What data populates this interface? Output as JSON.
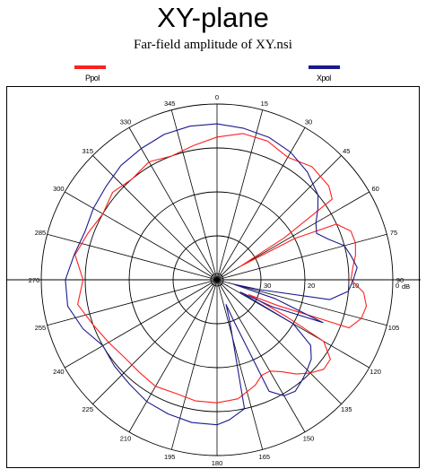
{
  "chart_data": {
    "type": "polar-line",
    "title": "XY-plane",
    "subtitle": "Far-field amplitude of XY.nsi",
    "angle_ticks": [
      "0",
      "15",
      "30",
      "45",
      "60",
      "75",
      "90",
      "105",
      "120",
      "135",
      "150",
      "165",
      "180",
      "195",
      "210",
      "225",
      "240",
      "255",
      "270",
      "285",
      "300",
      "315",
      "330",
      "345"
    ],
    "angle_direction": "clockwise, 0 at top",
    "radial_unit": "dB",
    "radial_ticks": [
      {
        "value": 0,
        "label": "0"
      },
      {
        "value": -10,
        "label": "10"
      },
      {
        "value": -20,
        "label": "20"
      },
      {
        "value": -30,
        "label": "30"
      }
    ],
    "radial_range": [
      -40,
      0
    ],
    "grid": true,
    "series": [
      {
        "name": "Ppol",
        "color": "#ff2020",
        "points": [
          [
            0,
            -7.5
          ],
          [
            10,
            -6.2
          ],
          [
            20,
            -6.4
          ],
          [
            30,
            -7.8
          ],
          [
            40,
            -6.4
          ],
          [
            50,
            -6.8
          ],
          [
            55,
            -8
          ],
          [
            58,
            -22
          ],
          [
            60,
            -34
          ],
          [
            62,
            -20
          ],
          [
            65,
            -10
          ],
          [
            70,
            -7.6
          ],
          [
            75,
            -7.4
          ],
          [
            80,
            -8
          ],
          [
            85,
            -9
          ],
          [
            90,
            -9.5
          ],
          [
            95,
            -6.5
          ],
          [
            100,
            -5.5
          ],
          [
            105,
            -6
          ],
          [
            110,
            -8
          ],
          [
            113,
            -25
          ],
          [
            115,
            -32
          ],
          [
            118,
            -22
          ],
          [
            120,
            -12
          ],
          [
            125,
            -8.5
          ],
          [
            130,
            -8.3
          ],
          [
            135,
            -10
          ],
          [
            140,
            -12
          ],
          [
            145,
            -14.5
          ],
          [
            150,
            -16
          ],
          [
            155,
            -16
          ],
          [
            160,
            -14.5
          ],
          [
            170,
            -12.5
          ],
          [
            180,
            -12
          ],
          [
            190,
            -12
          ],
          [
            200,
            -12.5
          ],
          [
            210,
            -12
          ],
          [
            220,
            -12.5
          ],
          [
            230,
            -12.5
          ],
          [
            240,
            -11.5
          ],
          [
            250,
            -10
          ],
          [
            260,
            -7.8
          ],
          [
            270,
            -9.5
          ],
          [
            280,
            -7.2
          ],
          [
            290,
            -8.8
          ],
          [
            300,
            -10
          ],
          [
            310,
            -9
          ],
          [
            320,
            -10
          ],
          [
            330,
            -9
          ],
          [
            340,
            -10
          ],
          [
            350,
            -9
          ]
        ]
      },
      {
        "name": "Xpol",
        "color": "#1a1a8c",
        "points": [
          [
            0,
            -4.5
          ],
          [
            10,
            -5
          ],
          [
            20,
            -5.5
          ],
          [
            30,
            -6.5
          ],
          [
            40,
            -8
          ],
          [
            50,
            -10
          ],
          [
            55,
            -12
          ],
          [
            60,
            -14
          ],
          [
            65,
            -15
          ],
          [
            70,
            -13
          ],
          [
            75,
            -10
          ],
          [
            80,
            -9
          ],
          [
            85,
            -8
          ],
          [
            90,
            -9
          ],
          [
            95,
            -10
          ],
          [
            100,
            -14
          ],
          [
            103,
            -30
          ],
          [
            105,
            -36
          ],
          [
            108,
            -26
          ],
          [
            112,
            -14
          ],
          [
            116,
            -26
          ],
          [
            118,
            -34
          ],
          [
            120,
            -20
          ],
          [
            125,
            -14
          ],
          [
            130,
            -12
          ],
          [
            135,
            -11
          ],
          [
            140,
            -10
          ],
          [
            145,
            -9
          ],
          [
            150,
            -9.5
          ],
          [
            155,
            -12
          ],
          [
            158,
            -30
          ],
          [
            160,
            -34
          ],
          [
            163,
            -30
          ],
          [
            168,
            -10
          ],
          [
            175,
            -8
          ],
          [
            180,
            -7
          ],
          [
            190,
            -7
          ],
          [
            200,
            -7.5
          ],
          [
            210,
            -8
          ],
          [
            220,
            -9
          ],
          [
            230,
            -9.5
          ],
          [
            240,
            -10
          ],
          [
            250,
            -7.5
          ],
          [
            260,
            -5.5
          ],
          [
            270,
            -5.5
          ],
          [
            280,
            -7
          ],
          [
            290,
            -8
          ],
          [
            300,
            -7.5
          ],
          [
            310,
            -7
          ],
          [
            320,
            -6
          ],
          [
            330,
            -5.5
          ],
          [
            340,
            -4.8
          ],
          [
            350,
            -4.5
          ]
        ]
      }
    ]
  }
}
